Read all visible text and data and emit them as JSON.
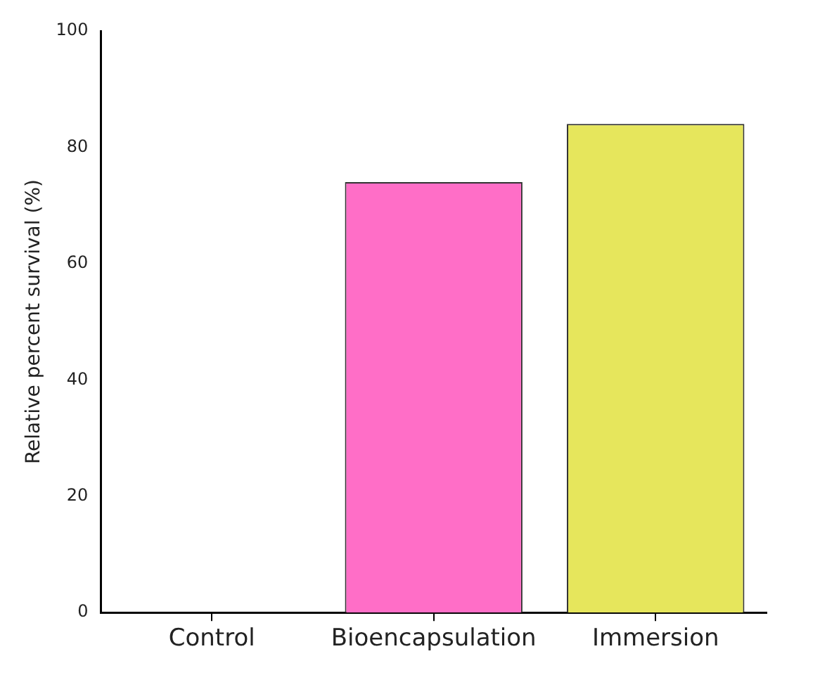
{
  "chart_data": {
    "type": "bar",
    "ylabel": "Relative percent survival (%)",
    "categories": [
      "Control",
      "Bioencapsulation",
      "Immersion"
    ],
    "values": [
      0,
      74,
      84
    ],
    "colors": [
      "#ff6ec7",
      "#ff6ec7",
      "#e6e65c"
    ],
    "ylim": [
      0,
      100
    ],
    "yticks": [
      0,
      20,
      40,
      60,
      80,
      100
    ],
    "grid": false,
    "legend": false
  }
}
